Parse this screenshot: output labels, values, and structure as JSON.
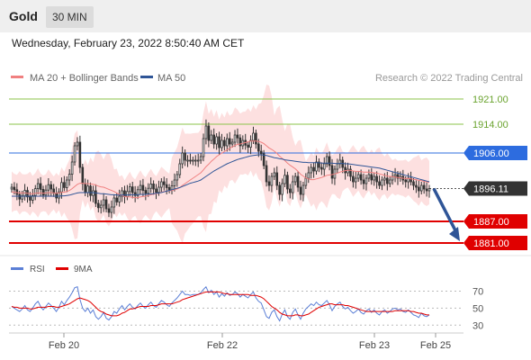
{
  "header": {
    "title": "Gold",
    "timeframe": "30 MIN"
  },
  "timestamp": "Wednesday, February 23, 2022 8:50:40 AM CET",
  "legend": [
    {
      "label": "MA 20 + Bollinger Bands",
      "color": "#f08080"
    },
    {
      "label": "MA 50",
      "color": "#2f5597"
    }
  ],
  "credit": "Research © 2022 Trading Central",
  "colors": {
    "up": "#ffffff",
    "down": "#333333",
    "band": "#fde0e0",
    "ma20": "#f08080",
    "ma50": "#2f5597",
    "resistance": "#8bc34a",
    "pivot": "#2d6cdf",
    "support": "#e00000",
    "last": "#333333",
    "rsi": "#5b7fd6",
    "ma9": "#e00000"
  },
  "chart_data": [
    {
      "type": "candlestick",
      "ylim": [
        1878,
        1924
      ],
      "x_ticks": [
        "Feb 20",
        "Feb 22",
        "Feb 23",
        "Feb 25"
      ],
      "levels": [
        {
          "value": 1921.0,
          "label": "1921.00",
          "kind": "resistance"
        },
        {
          "value": 1914.0,
          "label": "1914.00",
          "kind": "resistance"
        },
        {
          "value": 1906.0,
          "label": "1906.00",
          "kind": "pivot"
        },
        {
          "value": 1896.11,
          "label": "1896.11",
          "kind": "last"
        },
        {
          "value": 1887.0,
          "label": "1887.00",
          "kind": "support"
        },
        {
          "value": 1881.0,
          "label": "1881.00",
          "kind": "support"
        }
      ],
      "close": [
        1896.5,
        1895.8,
        1894.5,
        1893.2,
        1894.1,
        1895.6,
        1893.8,
        1892.9,
        1894.2,
        1896.1,
        1897.5,
        1895.9,
        1894.3,
        1895.7,
        1897.2,
        1896.0,
        1894.8,
        1893.5,
        1895.2,
        1897.8,
        1896.4,
        1898.5,
        1900.1,
        1903.5,
        1908.0,
        1909.0,
        1902.0,
        1897.5,
        1895.0,
        1896.8,
        1894.2,
        1895.5,
        1892.0,
        1890.8,
        1891.5,
        1893.0,
        1890.5,
        1889.5,
        1891.0,
        1893.5,
        1892.4,
        1894.0,
        1895.5,
        1893.9,
        1895.3,
        1896.6,
        1895.0,
        1894.2,
        1895.8,
        1897.0,
        1895.6,
        1894.8,
        1896.2,
        1897.4,
        1896.0,
        1895.1,
        1896.5,
        1898.0,
        1897.2,
        1896.4,
        1895.8,
        1896.9,
        1898.5,
        1900.0,
        1903.0,
        1906.0,
        1904.0,
        1904.0,
        1903.9,
        1904.0,
        1904.0,
        1904.0,
        1905.0,
        1910.0,
        1913.5,
        1909.5,
        1911.0,
        1908.5,
        1910.5,
        1907.5,
        1909.5,
        1908.0,
        1910.0,
        1908.5,
        1909.0,
        1911.0,
        1910.2,
        1908.0,
        1909.5,
        1908.2,
        1907.6,
        1909.5,
        1911.5,
        1908.5,
        1906.5,
        1905.8,
        1902.5,
        1898.0,
        1897.0,
        1899.5,
        1900.5,
        1897.0,
        1894.5,
        1897.5,
        1899.8,
        1896.0,
        1895.0,
        1898.0,
        1899.5,
        1896.5,
        1894.5,
        1897.0,
        1899.0,
        1900.5,
        1902.0,
        1901.0,
        1903.5,
        1902.0,
        1901.5,
        1903.0,
        1905.0,
        1902.5,
        1899.0,
        1901.5,
        1903.0,
        1904.0,
        1902.0,
        1900.5,
        1901.5,
        1899.5,
        1898.0,
        1899.0,
        1900.0,
        1898.5,
        1897.5,
        1899.0,
        1900.0,
        1898.5,
        1899.5,
        1898.0,
        1897.0,
        1898.5,
        1899.0,
        1897.5,
        1898.5,
        1899.5,
        1900.0,
        1899.0,
        1899.5,
        1898.5,
        1898.0,
        1899.0,
        1898.0,
        1897.0,
        1896.5,
        1895.5,
        1897.0,
        1896.0,
        1895.5,
        1896.11
      ],
      "ma20": [
        1895.2,
        1895.1,
        1895.0,
        1894.9,
        1894.9,
        1894.9,
        1894.8,
        1894.7,
        1894.7,
        1894.8,
        1894.9,
        1894.9,
        1894.8,
        1894.9,
        1895.0,
        1895.0,
        1894.9,
        1894.8,
        1894.9,
        1895.1,
        1895.1,
        1895.3,
        1895.6,
        1896.1,
        1896.7,
        1897.3,
        1897.6,
        1897.6,
        1897.5,
        1897.5,
        1897.4,
        1897.3,
        1897.1,
        1896.8,
        1896.6,
        1896.5,
        1896.2,
        1895.9,
        1895.6,
        1895.3,
        1894.9,
        1894.5,
        1894.2,
        1893.9,
        1893.8,
        1893.8,
        1893.7,
        1893.6,
        1893.6,
        1893.8,
        1893.9,
        1894.0,
        1894.2,
        1894.4,
        1894.6,
        1894.7,
        1894.9,
        1895.1,
        1895.3,
        1895.4,
        1895.5,
        1895.6,
        1895.8,
        1896.0,
        1896.4,
        1897.0,
        1897.5,
        1898.0,
        1898.5,
        1899.0,
        1899.5,
        1900.0,
        1900.5,
        1901.3,
        1902.2,
        1902.9,
        1903.7,
        1904.3,
        1905.0,
        1905.5,
        1906.0,
        1906.4,
        1906.9,
        1907.3,
        1907.7,
        1908.1,
        1908.4,
        1908.5,
        1908.7,
        1908.9,
        1909.1,
        1909.3,
        1909.3,
        1909.3,
        1909.2,
        1909.0,
        1908.6,
        1908.0,
        1907.4,
        1907.0,
        1906.5,
        1905.9,
        1905.1,
        1904.5,
        1903.9,
        1903.2,
        1902.6,
        1902.1,
        1901.6,
        1900.9,
        1900.1,
        1899.6,
        1899.1,
        1898.8,
        1898.6,
        1898.6,
        1898.8,
        1899.0,
        1899.2,
        1899.5,
        1899.8,
        1899.9,
        1900.0,
        1900.2,
        1900.4,
        1900.7,
        1900.9,
        1901.1,
        1901.2,
        1901.2,
        1901.0,
        1900.9,
        1900.9,
        1900.8,
        1900.7,
        1900.7,
        1900.7,
        1900.6,
        1900.5,
        1900.4,
        1900.2,
        1900.0,
        1899.8,
        1899.6,
        1899.5,
        1899.4,
        1899.3,
        1899.2,
        1899.1,
        1899.0,
        1898.9,
        1898.9,
        1898.8,
        1898.7,
        1898.6,
        1898.4,
        1898.3,
        1898.1,
        1898.0,
        1897.8
      ],
      "ma50": [
        1894.0,
        1894.0,
        1894.0,
        1894.0,
        1894.0,
        1894.0,
        1894.0,
        1894.0,
        1894.0,
        1894.0,
        1894.0,
        1894.0,
        1894.0,
        1894.0,
        1894.0,
        1894.0,
        1894.0,
        1894.0,
        1894.0,
        1894.1,
        1894.1,
        1894.2,
        1894.3,
        1894.5,
        1894.7,
        1894.9,
        1895.0,
        1895.0,
        1895.0,
        1895.0,
        1895.0,
        1895.0,
        1894.9,
        1894.8,
        1894.7,
        1894.7,
        1894.6,
        1894.5,
        1894.4,
        1894.4,
        1894.3,
        1894.3,
        1894.3,
        1894.3,
        1894.3,
        1894.4,
        1894.4,
        1894.4,
        1894.4,
        1894.5,
        1894.5,
        1894.5,
        1894.6,
        1894.6,
        1894.7,
        1894.8,
        1894.9,
        1895.0,
        1895.2,
        1895.4,
        1895.6,
        1895.8,
        1896.0,
        1896.2,
        1896.4,
        1896.7,
        1897.0,
        1897.3,
        1897.6,
        1897.8,
        1898.0,
        1898.2,
        1898.5,
        1899.0,
        1899.5,
        1900.0,
        1900.5,
        1901.0,
        1901.4,
        1901.8,
        1902.2,
        1902.6,
        1903.0,
        1903.3,
        1903.6,
        1903.9,
        1904.2,
        1904.4,
        1904.6,
        1904.8,
        1905.0,
        1905.2,
        1905.3,
        1905.4,
        1905.5,
        1905.5,
        1905.4,
        1905.3,
        1905.1,
        1904.9,
        1904.7,
        1904.6,
        1904.4,
        1904.3,
        1904.1,
        1904.0,
        1903.9,
        1903.8,
        1903.7,
        1903.6,
        1903.5,
        1903.4,
        1903.4,
        1903.3,
        1903.3,
        1903.3,
        1903.3,
        1903.3,
        1903.2,
        1903.2,
        1903.2,
        1903.2,
        1903.2,
        1903.1,
        1903.1,
        1903.1,
        1903.1,
        1903.0,
        1903.0,
        1902.9,
        1902.8,
        1902.7,
        1902.6,
        1902.5,
        1902.4,
        1902.3,
        1902.2,
        1902.1,
        1902.0,
        1901.9,
        1901.8,
        1901.6,
        1901.4,
        1901.2,
        1901.0,
        1900.8,
        1900.6,
        1900.4,
        1900.2,
        1900.0,
        1899.8,
        1899.6,
        1899.4,
        1899.2,
        1899.0,
        1898.8,
        1898.6,
        1898.4,
        1898.2,
        1898.0
      ],
      "projection": {
        "from": 1896.11,
        "to": 1881.0
      }
    },
    {
      "type": "line",
      "series": [
        {
          "name": "RSI",
          "values": [
            52,
            50,
            48,
            46,
            49,
            53,
            48,
            46,
            50,
            55,
            58,
            52,
            48,
            52,
            56,
            53,
            50,
            46,
            51,
            58,
            54,
            59,
            63,
            68,
            74,
            75,
            60,
            50,
            46,
            50,
            44,
            48,
            40,
            37,
            40,
            45,
            38,
            36,
            40,
            46,
            44,
            49,
            53,
            48,
            52,
            55,
            51,
            49,
            53,
            56,
            52,
            50,
            54,
            57,
            53,
            51,
            55,
            59,
            57,
            54,
            52,
            56,
            59,
            62,
            66,
            70,
            66,
            66,
            65,
            66,
            66,
            66,
            68,
            72,
            75,
            68,
            71,
            66,
            69,
            63,
            67,
            64,
            68,
            65,
            66,
            69,
            67,
            63,
            66,
            64,
            62,
            66,
            69,
            62,
            58,
            56,
            48,
            40,
            38,
            45,
            48,
            40,
            35,
            43,
            48,
            40,
            37,
            45,
            49,
            42,
            37,
            44,
            49,
            52,
            55,
            53,
            57,
            54,
            53,
            56,
            59,
            54,
            47,
            52,
            55,
            57,
            52,
            49,
            51,
            47,
            44,
            46,
            49,
            45,
            43,
            47,
            49,
            45,
            48,
            44,
            42,
            46,
            48,
            44,
            46,
            49,
            50,
            48,
            49,
            46,
            45,
            48,
            45,
            42,
            41,
            39,
            44,
            41,
            40,
            42
          ]
        },
        {
          "name": "9MA",
          "values": [
            52,
            51,
            51,
            50,
            50,
            50,
            50,
            49,
            49,
            50,
            51,
            51,
            51,
            51,
            52,
            52,
            52,
            51,
            51,
            52,
            53,
            54,
            55,
            57,
            59,
            61,
            62,
            61,
            60,
            59,
            57,
            54,
            51,
            48,
            46,
            45,
            43,
            42,
            41,
            41,
            41,
            42,
            44,
            45,
            47,
            49,
            49,
            50,
            51,
            52,
            52,
            52,
            52,
            53,
            53,
            53,
            54,
            55,
            55,
            55,
            55,
            55,
            56,
            57,
            58,
            60,
            61,
            62,
            63,
            64,
            65,
            66,
            67,
            68,
            69,
            69,
            69,
            69,
            69,
            69,
            68,
            67,
            67,
            66,
            66,
            66,
            66,
            66,
            66,
            66,
            66,
            65,
            65,
            65,
            64,
            63,
            61,
            58,
            55,
            52,
            50,
            48,
            45,
            43,
            42,
            41,
            41,
            41,
            42,
            42,
            41,
            41,
            42,
            43,
            45,
            47,
            49,
            51,
            52,
            53,
            54,
            55,
            55,
            54,
            54,
            54,
            54,
            53,
            53,
            52,
            51,
            50,
            49,
            48,
            47,
            46,
            46,
            46,
            46,
            46,
            46,
            46,
            46,
            46,
            46,
            46,
            47,
            47,
            47,
            47,
            47,
            47,
            46,
            46,
            45,
            44,
            44,
            43,
            42,
            42
          ]
        }
      ],
      "yticks": [
        70,
        50,
        30
      ],
      "levels": [
        70,
        50,
        30
      ]
    }
  ]
}
